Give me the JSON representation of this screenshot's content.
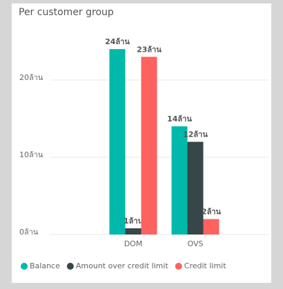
{
  "chart_data": {
    "type": "bar",
    "title": "Per customer group",
    "categories": [
      "DOM",
      "OVS"
    ],
    "series": [
      {
        "name": "Balance",
        "color": "#01B8AA",
        "values": [
          24,
          14
        ],
        "value_labels": [
          "24ล้าน",
          "14ล้าน"
        ]
      },
      {
        "name": "Amount over credit limit",
        "color": "#374649",
        "values": [
          0.8,
          12
        ],
        "value_labels": [
          "1ล้าน",
          "12ล้าน"
        ]
      },
      {
        "name": "Credit limit",
        "color": "#FD625E",
        "values": [
          23,
          2
        ],
        "value_labels": [
          "23ล้าน",
          "2ล้าน"
        ]
      }
    ],
    "ylim": [
      0,
      27
    ],
    "yticks": [
      {
        "value": 0,
        "label": "0ล้าน"
      },
      {
        "value": 10,
        "label": "10ล้าน"
      },
      {
        "value": 20,
        "label": "20ล้าน"
      }
    ],
    "grid": true,
    "legend": "bottom"
  }
}
